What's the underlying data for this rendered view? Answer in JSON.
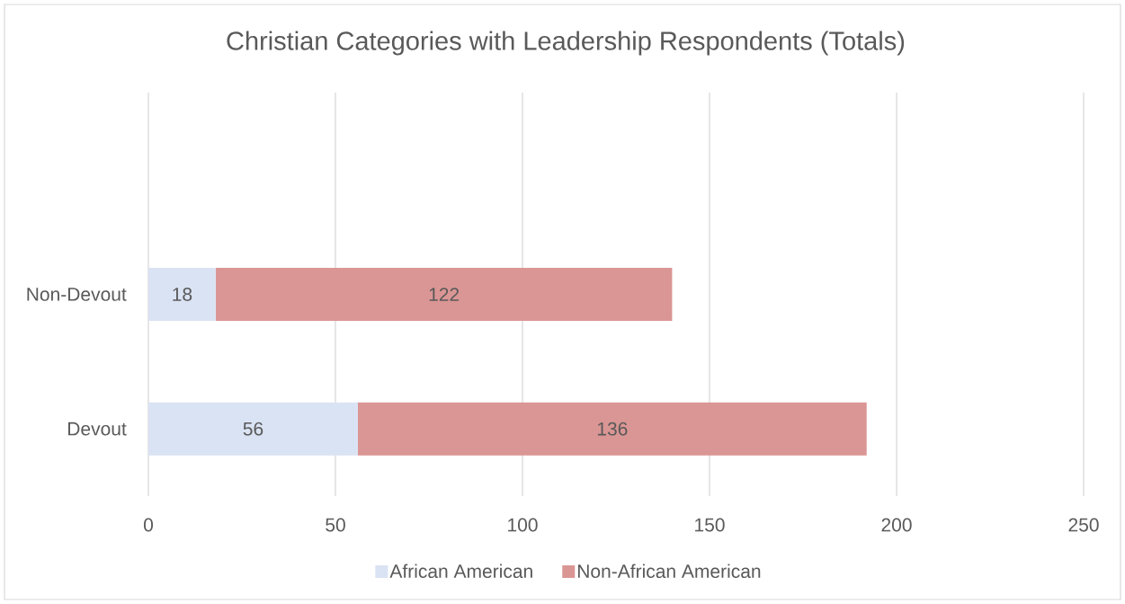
{
  "chart_data": {
    "type": "bar",
    "orientation": "horizontal",
    "stacked": true,
    "title": "Christian Categories with Leadership Respondents (Totals)",
    "categories": [
      null,
      "Non-Devout",
      "Devout"
    ],
    "series": [
      {
        "name": "African American",
        "color": "#dae3f3",
        "values": [
          null,
          18,
          56
        ]
      },
      {
        "name": "Non-African American",
        "color": "#da9694",
        "values": [
          null,
          122,
          136
        ]
      }
    ],
    "xlim": [
      0,
      250
    ],
    "xticks": [
      0,
      50,
      100,
      150,
      200,
      250
    ],
    "grid": "x",
    "legend": "bottom",
    "data_labels": true
  }
}
